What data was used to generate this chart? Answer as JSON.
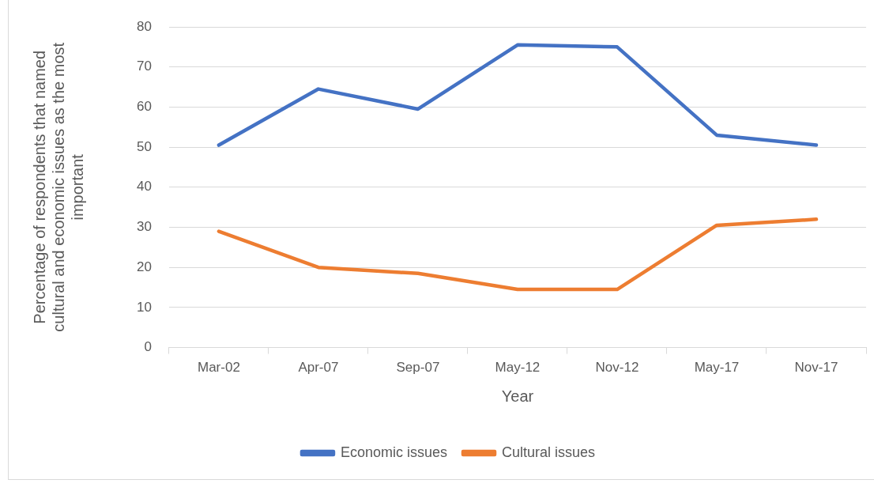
{
  "chart_data": {
    "type": "line",
    "xlabel": "Year",
    "ylabel": "Percentage of respondents that named cultural and economic issues as the most important",
    "categories": [
      "Mar-02",
      "Apr-07",
      "Sep-07",
      "May-12",
      "Nov-12",
      "May-17",
      "Nov-17"
    ],
    "series": [
      {
        "name": "Economic issues",
        "color": "#4472c4",
        "values": [
          50.5,
          64.5,
          59.5,
          75.5,
          75,
          53,
          50.5
        ]
      },
      {
        "name": "Cultural issues",
        "color": "#ed7d31",
        "values": [
          29,
          20,
          18.5,
          14.5,
          14.5,
          30.5,
          32
        ]
      }
    ],
    "ylim": [
      0,
      80
    ],
    "yticks": [
      0,
      10,
      20,
      30,
      40,
      50,
      60,
      70,
      80
    ],
    "grid": "y",
    "legend": "bottom",
    "marker": "none",
    "line_style": "solid"
  }
}
